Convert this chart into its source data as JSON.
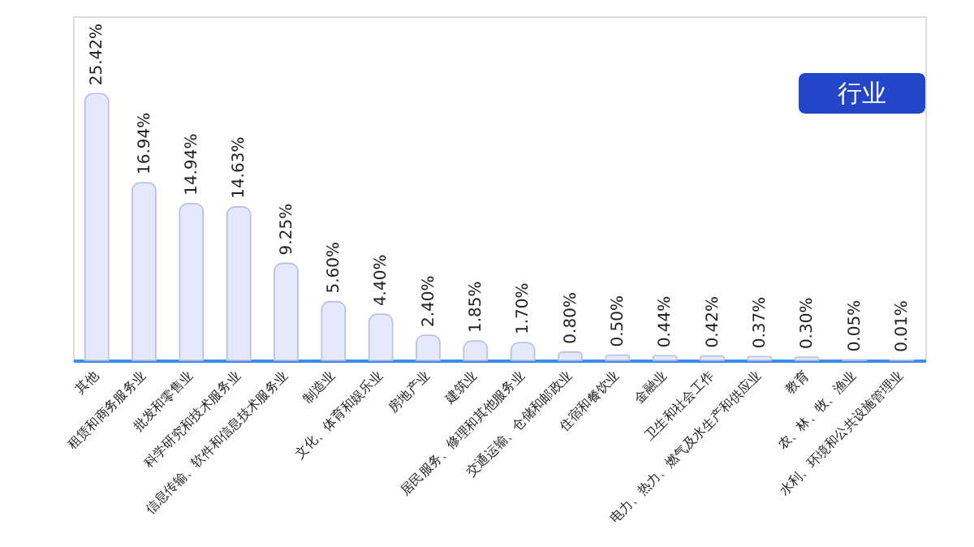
{
  "chart_data": {
    "type": "bar",
    "title": "行业",
    "categories": [
      "其他",
      "租赁和商务服务业",
      "批发和零售业",
      "科学研究和技术服务业",
      "信息传输、软件和信息技术服务业",
      "制造业",
      "文化、体育和娱乐业",
      "房地产业",
      "建筑业",
      "居民服务、修理和其他服务业",
      "交通运输、仓储和邮政业",
      "住宿和餐饮业",
      "金融业",
      "卫生和社会工作",
      "电力、热力、燃气及水生产和供应业",
      "教育",
      "农、林、牧、渔业",
      "水利、环境和公共设施管理业"
    ],
    "values": [
      25.42,
      16.94,
      14.94,
      14.63,
      9.25,
      5.6,
      4.4,
      2.4,
      1.85,
      1.7,
      0.8,
      0.5,
      0.44,
      0.42,
      0.37,
      0.3,
      0.05,
      0.01
    ],
    "value_labels": [
      "25.42%",
      "16.94%",
      "14.94%",
      "14.63%",
      "9.25%",
      "5.60%",
      "4.40%",
      "2.40%",
      "1.85%",
      "1.70%",
      "0.80%",
      "0.50%",
      "0.44%",
      "0.42%",
      "0.37%",
      "0.30%",
      "0.05%",
      "0.01%"
    ],
    "color": "#e4e9fb",
    "grid": false
  }
}
